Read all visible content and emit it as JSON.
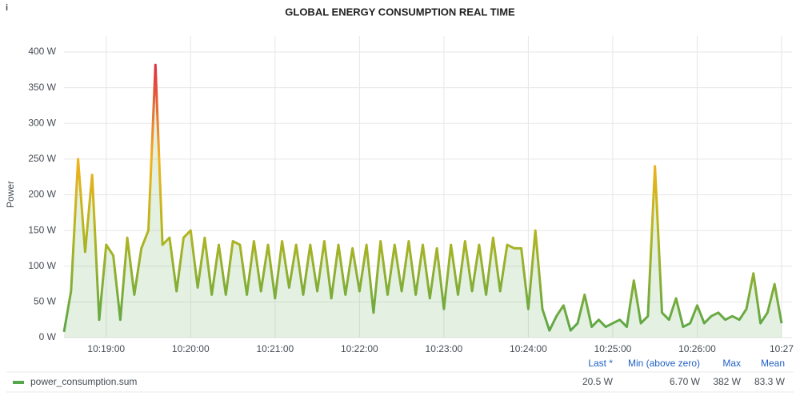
{
  "chart_data": {
    "type": "line",
    "title": "GLOBAL ENERGY CONSUMPTION REAL TIME",
    "y_label": "Power",
    "x": [
      "10:18:30",
      "10:18:35",
      "10:18:40",
      "10:18:45",
      "10:18:50",
      "10:18:55",
      "10:19:00",
      "10:19:05",
      "10:19:10",
      "10:19:15",
      "10:19:20",
      "10:19:25",
      "10:19:30",
      "10:19:35",
      "10:19:40",
      "10:19:45",
      "10:19:50",
      "10:19:55",
      "10:20:00",
      "10:20:05",
      "10:20:10",
      "10:20:15",
      "10:20:20",
      "10:20:25",
      "10:20:30",
      "10:20:35",
      "10:20:40",
      "10:20:45",
      "10:20:50",
      "10:20:55",
      "10:21:00",
      "10:21:05",
      "10:21:10",
      "10:21:15",
      "10:21:20",
      "10:21:25",
      "10:21:30",
      "10:21:35",
      "10:21:40",
      "10:21:45",
      "10:21:50",
      "10:21:55",
      "10:22:00",
      "10:22:05",
      "10:22:10",
      "10:22:15",
      "10:22:20",
      "10:22:25",
      "10:22:30",
      "10:22:35",
      "10:22:40",
      "10:22:45",
      "10:22:50",
      "10:22:55",
      "10:23:00",
      "10:23:05",
      "10:23:10",
      "10:23:15",
      "10:23:20",
      "10:23:25",
      "10:23:30",
      "10:23:35",
      "10:23:40",
      "10:23:45",
      "10:23:50",
      "10:23:55",
      "10:24:00",
      "10:24:05",
      "10:24:10",
      "10:24:15",
      "10:24:20",
      "10:24:25",
      "10:24:30",
      "10:24:35",
      "10:24:40",
      "10:24:45",
      "10:24:50",
      "10:24:55",
      "10:25:00",
      "10:25:05",
      "10:25:10",
      "10:25:15",
      "10:25:20",
      "10:25:25",
      "10:25:30",
      "10:25:35",
      "10:25:40",
      "10:25:45",
      "10:25:50",
      "10:25:55",
      "10:26:00",
      "10:26:05",
      "10:26:10",
      "10:26:15",
      "10:26:20",
      "10:26:25",
      "10:26:30",
      "10:26:35",
      "10:26:40",
      "10:26:45",
      "10:26:50",
      "10:26:55",
      "10:27:00"
    ],
    "series": [
      {
        "name": "power_consumption.sum",
        "color": "#56a64b",
        "values": [
          8,
          65,
          250,
          120,
          228,
          25,
          130,
          115,
          25,
          140,
          60,
          125,
          150,
          382,
          130,
          140,
          65,
          140,
          150,
          70,
          140,
          60,
          130,
          60,
          135,
          130,
          60,
          135,
          65,
          130,
          55,
          135,
          70,
          130,
          60,
          130,
          65,
          135,
          55,
          130,
          60,
          125,
          65,
          130,
          35,
          135,
          60,
          130,
          65,
          135,
          60,
          130,
          55,
          125,
          40,
          130,
          60,
          135,
          65,
          130,
          60,
          140,
          65,
          130,
          125,
          125,
          40,
          150,
          40,
          10,
          30,
          45,
          10,
          20,
          60,
          15,
          25,
          15,
          20,
          25,
          15,
          80,
          20,
          30,
          240,
          35,
          25,
          55,
          15,
          20,
          45,
          20,
          30,
          35,
          25,
          30,
          25,
          40,
          90,
          20,
          35,
          75,
          20
        ],
        "stats": {
          "columns": [
            "Last *",
            "Min (above zero)",
            "Max",
            "Mean"
          ],
          "values": [
            20.5,
            6.7,
            382,
            83.3
          ],
          "value_labels": [
            "20.5 W",
            "6.70 W",
            "382 W",
            "83.3 W"
          ]
        }
      }
    ],
    "gradient": [
      {
        "value": 0,
        "color": "#56a64b"
      },
      {
        "value": 150,
        "color": "#b5b51f"
      },
      {
        "value": 250,
        "color": "#f2b21e"
      },
      {
        "value": 382,
        "color": "#e02f44"
      }
    ],
    "xlim": [
      "10:18:30",
      "10:27:00"
    ],
    "xticks": [
      "10:19:00",
      "10:20:00",
      "10:21:00",
      "10:22:00",
      "10:23:00",
      "10:24:00",
      "10:25:00",
      "10:26:00",
      {
        "value": "10:27:00",
        "label": "10:27"
      }
    ],
    "ylim": [
      0,
      400
    ],
    "yticks": [
      {
        "value": 0,
        "label": "0 W"
      },
      {
        "value": 50,
        "label": "50 W"
      },
      {
        "value": 100,
        "label": "100 W"
      },
      {
        "value": 150,
        "label": "150 W"
      },
      {
        "value": 200,
        "label": "200 W"
      },
      {
        "value": 250,
        "label": "250 W"
      },
      {
        "value": 300,
        "label": "300 W"
      },
      {
        "value": 350,
        "label": "350 W"
      },
      {
        "value": 400,
        "label": "400 W"
      }
    ],
    "grid": true
  }
}
